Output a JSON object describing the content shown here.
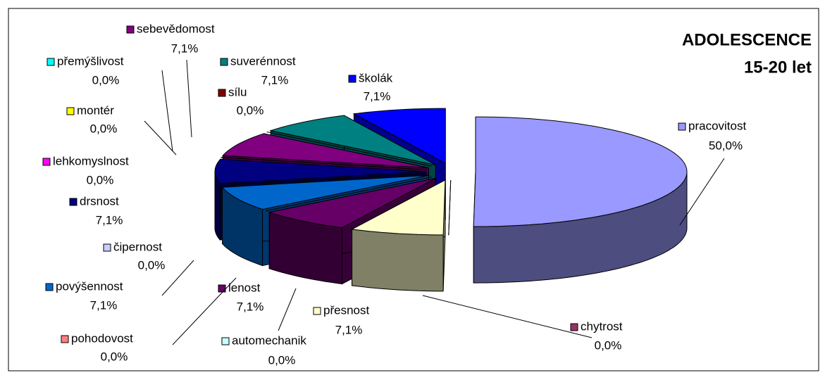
{
  "chart_data": {
    "type": "pie",
    "title": "ADOLESCENCE",
    "subtitle": "15-20 let",
    "categories": [
      "pracovitost",
      "chytrost",
      "automechanik",
      "přesnost",
      "lenost",
      "pohodovost",
      "povýšennost",
      "čipernost",
      "drsnost",
      "lehkomyslnost",
      "montér",
      "přemýšlivost",
      "sebevědomost",
      "sílu",
      "suverénnost",
      "školák"
    ],
    "values": [
      50.0,
      0.0,
      0.0,
      7.1,
      7.1,
      0.0,
      7.1,
      0.0,
      7.1,
      0.0,
      0.0,
      0.0,
      7.1,
      0.0,
      7.1,
      7.1
    ],
    "value_labels": [
      "50,0%",
      "0,0%",
      "0,0%",
      "7,1%",
      "7,1%",
      "0,0%",
      "7,1%",
      "0,0%",
      "7,1%",
      "0,0%",
      "0,0%",
      "0,0%",
      "7,1%",
      "0,0%",
      "7,1%",
      "7,1%"
    ],
    "colors": [
      "#9999ff",
      "#993366",
      "#ccffff",
      "#ffffcc",
      "#660066",
      "#ff8080",
      "#0066cc",
      "#ccccff",
      "#000080",
      "#ff00ff",
      "#ffff00",
      "#00ffff",
      "#800080",
      "#800000",
      "#008080",
      "#0000ff"
    ]
  }
}
